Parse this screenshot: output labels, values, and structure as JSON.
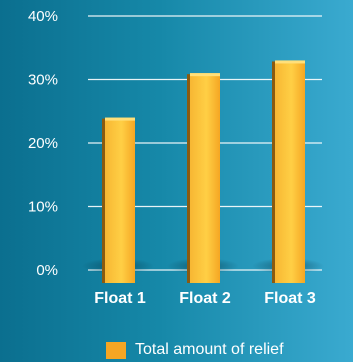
{
  "chart_data": {
    "type": "bar",
    "title": "",
    "xlabel": "",
    "ylabel": "",
    "categories": [
      "Float 1",
      "Float 2",
      "Float 3"
    ],
    "series": [
      {
        "name": "Total amount of relief",
        "values": [
          24,
          31,
          33
        ]
      }
    ],
    "ylim": [
      0,
      40
    ],
    "yticks": [
      "0%",
      "10%",
      "20%",
      "30%",
      "40%"
    ],
    "grid": true,
    "legend": "bottom-right",
    "colors": {
      "bar": "#f5a623",
      "bar_side": "#8a5a10",
      "grid": "#ffffff",
      "text": "#ffffff"
    }
  }
}
